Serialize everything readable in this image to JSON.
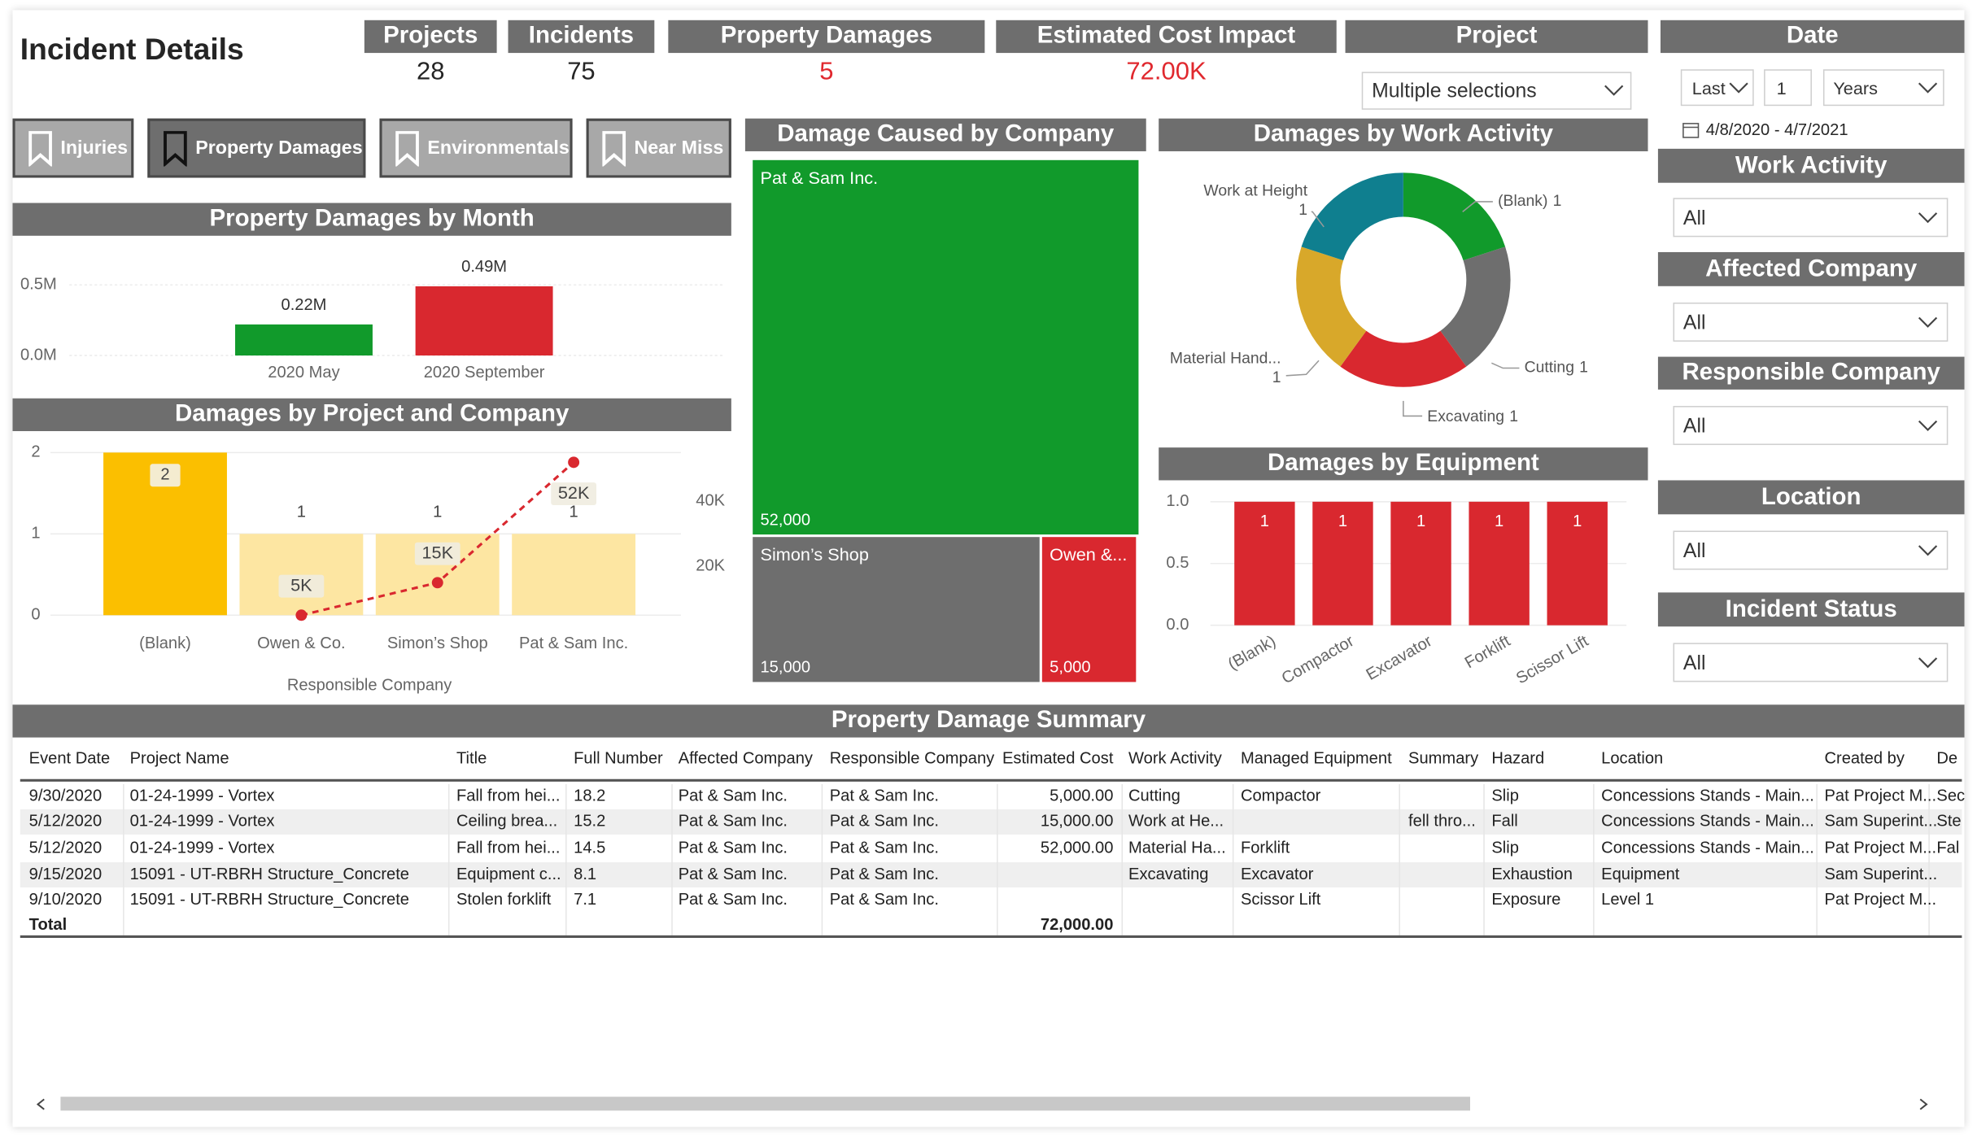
{
  "header": {
    "title": "Incident Details"
  },
  "cards": [
    {
      "label": "Projects",
      "value": 28
    },
    {
      "label": "Incidents",
      "value": 75
    },
    {
      "label": "Property Damages",
      "value": 5,
      "color": "#e0282e"
    },
    {
      "label": "Estimated Cost Impact",
      "value": "72.00K",
      "color": "#e0282e"
    }
  ],
  "buttons": {
    "items": [
      "Injuries",
      "Property Damages",
      "Environmentals",
      "Near Miss"
    ],
    "selected": 1
  },
  "slicers": {
    "project": {
      "label": "Project",
      "value": "Multiple selections"
    },
    "date": {
      "label": "Date",
      "mode": "Last",
      "count": 1,
      "unit": "Years",
      "range": "4/8/2020 - 4/7/2021"
    },
    "filters": [
      {
        "label": "Work Activity",
        "value": "All"
      },
      {
        "label": "Affected Company",
        "value": "All"
      },
      {
        "label": "Responsible Company",
        "value": "All"
      },
      {
        "label": "Location",
        "value": "All"
      },
      {
        "label": "Incident Status",
        "value": "All"
      }
    ]
  },
  "chart_data": [
    {
      "type": "bar",
      "title": "Property Damages by Month",
      "categories": [
        "2020 May",
        "2020 September"
      ],
      "values": [
        220000,
        490000
      ],
      "value_labels": [
        "0.22M",
        "0.49M"
      ],
      "colors": [
        "#119a2b",
        "#d9282f"
      ],
      "ylim": [
        0,
        500000
      ],
      "yticks": [
        {
          "value": 0,
          "label": "0.0M"
        },
        {
          "value": 500000,
          "label": "0.5M"
        }
      ],
      "grid": true
    },
    {
      "type": "combo",
      "title": "Damages by Project and Company",
      "x_label": "Responsible Company",
      "categories": [
        "(Blank)",
        "Owen & Co.",
        "Simon’s Shop",
        "Pat & Sam Inc."
      ],
      "series": [
        {
          "kind": "bar",
          "colors": [
            "#fbbf00",
            "#fde6a2",
            "#fde6a2",
            "#fde6a2"
          ],
          "values": [
            2,
            1,
            1,
            1
          ]
        },
        {
          "kind": "line",
          "axis": "y2",
          "color": "#d9282f",
          "values": [
            null,
            5000,
            15000,
            52000
          ],
          "value_labels": [
            null,
            "5K",
            "15K",
            "52K"
          ]
        }
      ],
      "ylim": [
        0,
        2
      ],
      "yticks": [
        0,
        1,
        2
      ],
      "y2lim": [
        5000,
        55000
      ],
      "y2ticks": [
        {
          "value": 20000,
          "label": "20K"
        },
        {
          "value": 40000,
          "label": "40K"
        }
      ],
      "grid": true
    },
    {
      "type": "treemap",
      "title": "Damage Caused by Company",
      "categories": [
        "Pat & Sam Inc.",
        "Simon’s Shop",
        "Owen &..."
      ],
      "values": [
        52000,
        15000,
        5000
      ],
      "value_labels": [
        "52,000",
        "15,000",
        "5,000"
      ],
      "colors": [
        "#119a2b",
        "#6e6e6e",
        "#d9282f"
      ]
    },
    {
      "type": "donut",
      "title": "Damages by Work Activity",
      "categories": [
        "(Blank)",
        "Cutting",
        "Excavating",
        "Material Hand...",
        "Work at Height"
      ],
      "values": [
        1,
        1,
        1,
        1,
        1
      ],
      "colors": [
        "#119a2b",
        "#6e6e6e",
        "#d9282f",
        "#d8a82a",
        "#0f7f8f"
      ]
    },
    {
      "type": "bar",
      "title": "Damages by Equipment",
      "categories": [
        "(Blank)",
        "Compactor",
        "Excavator",
        "Forklift",
        "Scissor Lift"
      ],
      "values": [
        1,
        1,
        1,
        1,
        1
      ],
      "color": "#d9282f",
      "ylim": [
        0,
        1
      ],
      "yticks": [
        {
          "value": 0,
          "label": "0.0"
        },
        {
          "value": 0.5,
          "label": "0.5"
        },
        {
          "value": 1,
          "label": "1.0"
        }
      ],
      "grid": true
    }
  ],
  "table": {
    "title": "Property Damage Summary",
    "columns": [
      "Event Date",
      "Project Name",
      "Title",
      "Full Number",
      "Affected Company",
      "Responsible Company",
      "Estimated Cost",
      "Work Activity",
      "Managed Equipment",
      "Summary",
      "Hazard",
      "Location",
      "Created by",
      "De"
    ],
    "rows": [
      [
        "9/30/2020",
        "01-24-1999 - Vortex",
        "Fall from hei...",
        "18.2",
        "Pat & Sam Inc.",
        "Pat & Sam Inc.",
        "5,000.00",
        "Cutting",
        "Compactor",
        null,
        "Slip",
        "Concessions Stands - Main...",
        "Pat Project M...",
        "Sec"
      ],
      [
        "5/12/2020",
        "01-24-1999 - Vortex",
        "Ceiling brea...",
        "15.2",
        "Pat & Sam Inc.",
        "Pat & Sam Inc.",
        "15,000.00",
        "Work at He...",
        null,
        "fell thro...",
        "Fall",
        "Concessions Stands - Main...",
        "Sam Superint...",
        "Ste"
      ],
      [
        "5/12/2020",
        "01-24-1999 - Vortex",
        "Fall from hei...",
        "14.5",
        "Pat & Sam Inc.",
        "Pat & Sam Inc.",
        "52,000.00",
        "Material Ha...",
        "Forklift",
        null,
        "Slip",
        "Concessions Stands - Main...",
        "Pat Project M...",
        "Fal"
      ],
      [
        "9/15/2020",
        "15091 - UT-RBRH Structure_Concrete",
        "Equipment c...",
        "8.1",
        "Pat & Sam Inc.",
        "Pat & Sam Inc.",
        null,
        "Excavating",
        "Excavator",
        null,
        "Exhaustion",
        "Equipment",
        "Sam Superint...",
        null
      ],
      [
        "9/10/2020",
        "15091 - UT-RBRH Structure_Concrete",
        "Stolen forklift",
        "7.1",
        "Pat & Sam Inc.",
        "Pat & Sam Inc.",
        null,
        null,
        "Scissor Lift",
        null,
        "Exposure",
        "Level 1",
        "Pat Project M...",
        null
      ]
    ],
    "total": {
      "label": "Total",
      "estimated_cost": "72,000.00"
    }
  }
}
